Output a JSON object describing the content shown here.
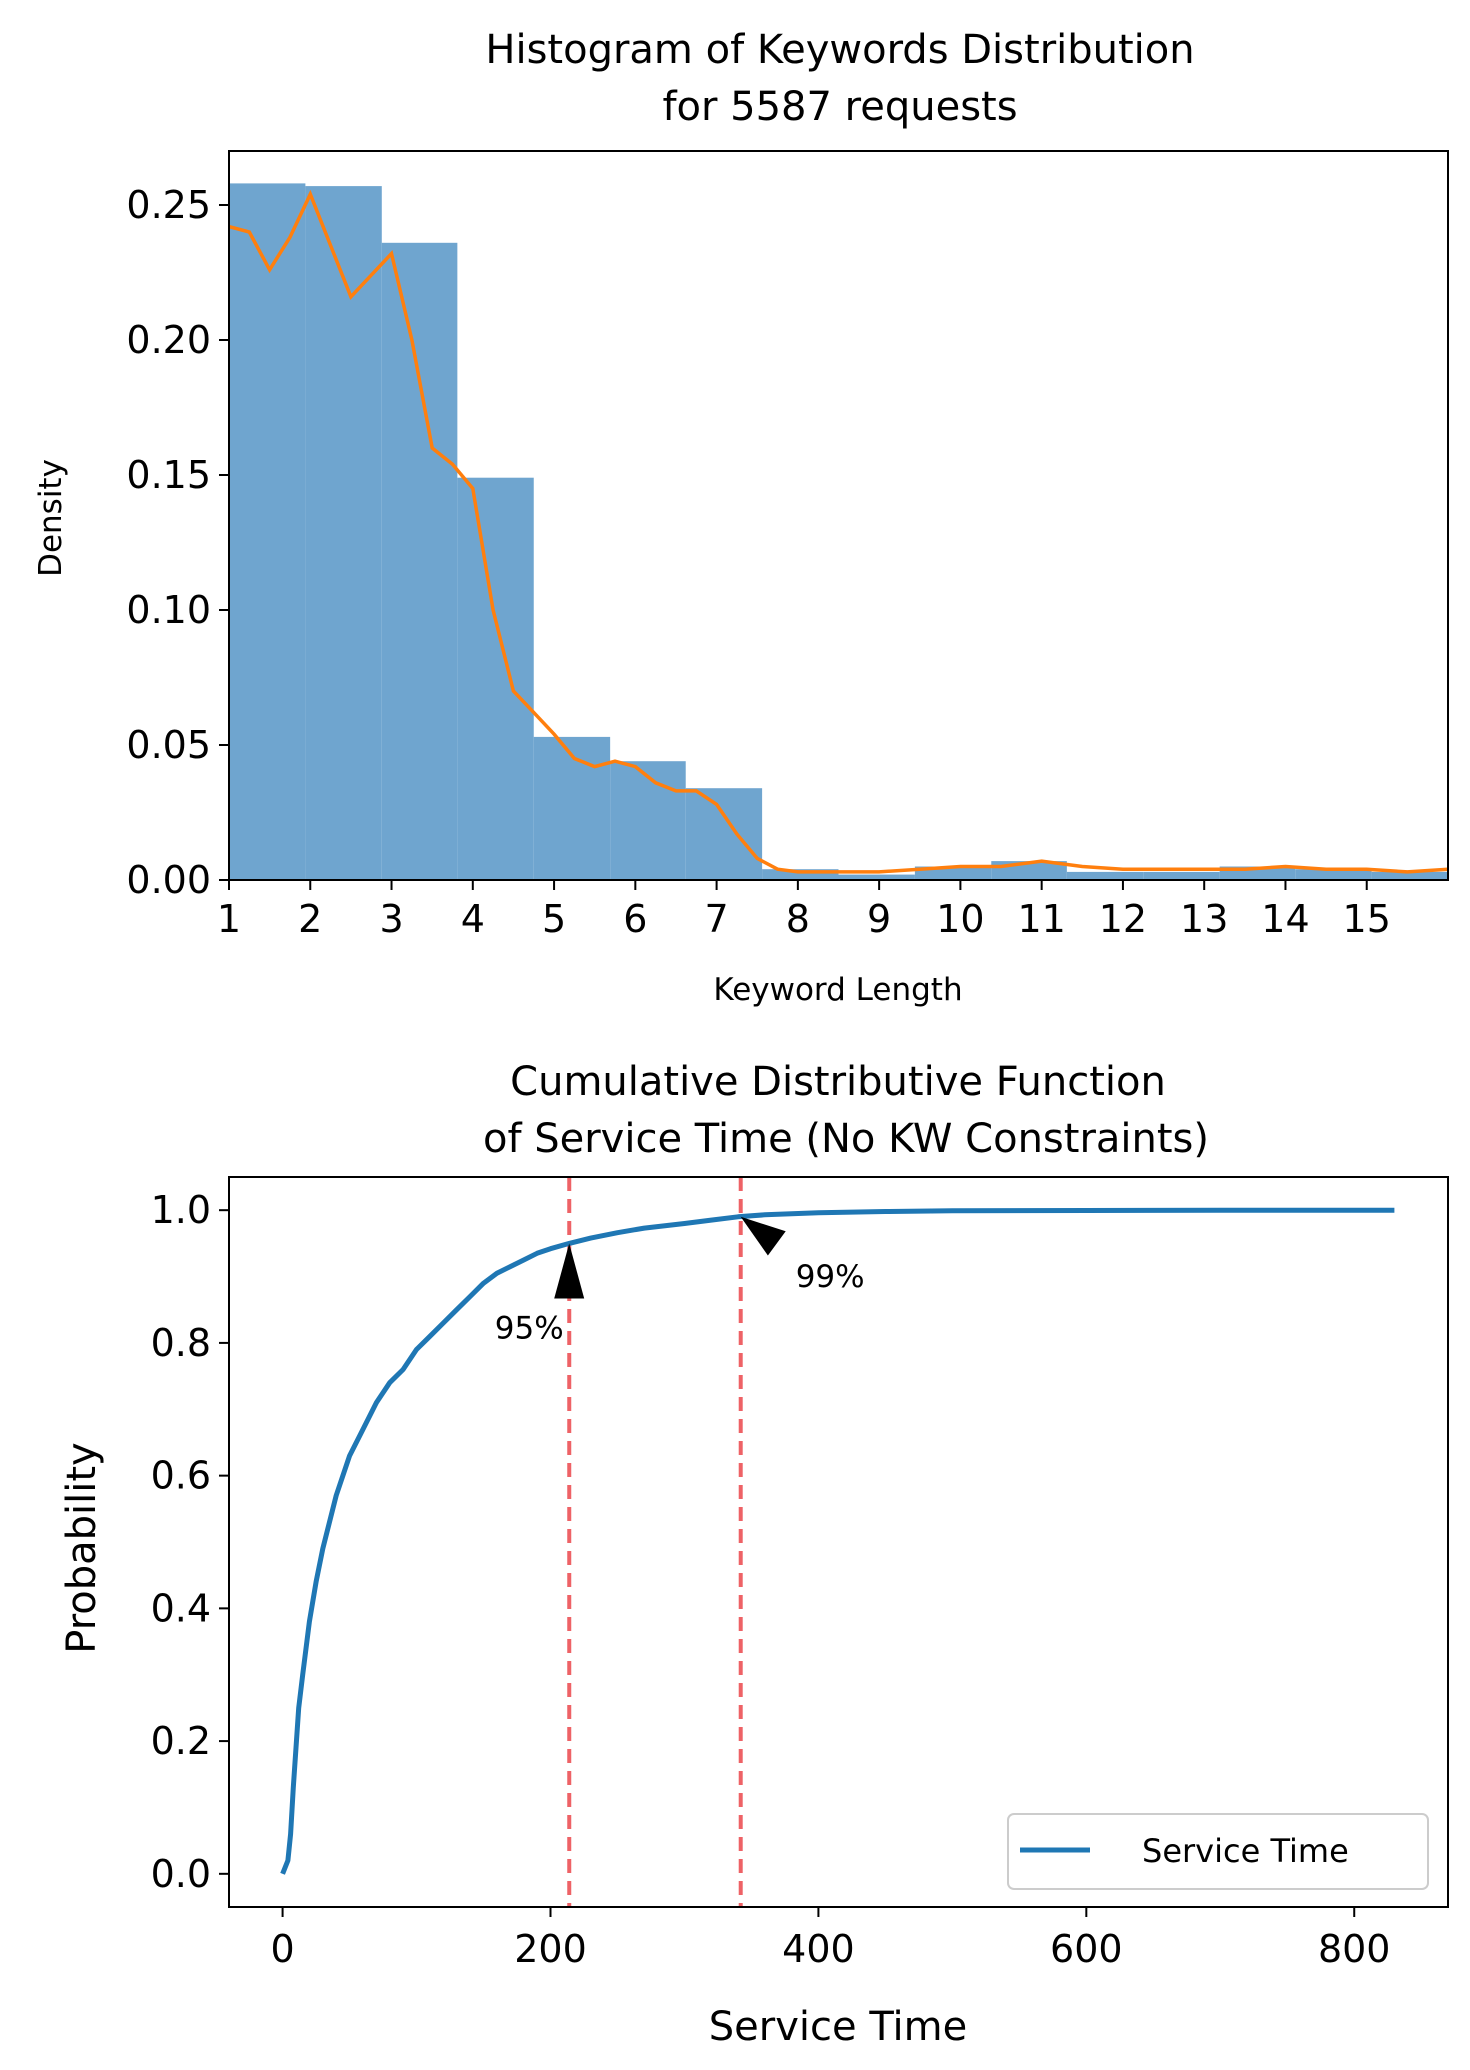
{
  "chart_data": [
    {
      "type": "bar",
      "title": [
        "Histogram of Keywords Distribution",
        "for 5587 requests"
      ],
      "xlabel": "Keyword Length",
      "ylabel": "Density",
      "xlim": [
        1,
        16
      ],
      "ylim": [
        0,
        0.27
      ],
      "xticks": [
        1,
        2,
        3,
        4,
        5,
        6,
        7,
        8,
        9,
        10,
        11,
        12,
        13,
        14,
        15
      ],
      "yticks": [
        0.0,
        0.05,
        0.1,
        0.15,
        0.2,
        0.25
      ],
      "ytick_labels": [
        "0.00",
        "0.05",
        "0.10",
        "0.15",
        "0.20",
        "0.25"
      ],
      "bar_color": "#6fa5cf",
      "kde_color": "#ff7f0e",
      "bins": [
        {
          "x0": 1.0,
          "x1": 1.94,
          "value": 0.258
        },
        {
          "x0": 1.94,
          "x1": 2.88,
          "value": 0.257
        },
        {
          "x0": 2.88,
          "x1": 3.81,
          "value": 0.236
        },
        {
          "x0": 3.81,
          "x1": 4.75,
          "value": 0.149
        },
        {
          "x0": 4.75,
          "x1": 5.69,
          "value": 0.053
        },
        {
          "x0": 5.69,
          "x1": 6.62,
          "value": 0.044
        },
        {
          "x0": 6.62,
          "x1": 7.56,
          "value": 0.034
        },
        {
          "x0": 7.56,
          "x1": 8.5,
          "value": 0.004
        },
        {
          "x0": 8.5,
          "x1": 9.44,
          "value": 0.002
        },
        {
          "x0": 9.44,
          "x1": 10.38,
          "value": 0.005
        },
        {
          "x0": 10.38,
          "x1": 11.31,
          "value": 0.007
        },
        {
          "x0": 11.31,
          "x1": 12.25,
          "value": 0.003
        },
        {
          "x0": 12.25,
          "x1": 13.19,
          "value": 0.003
        },
        {
          "x0": 13.19,
          "x1": 14.12,
          "value": 0.005
        },
        {
          "x0": 14.12,
          "x1": 15.06,
          "value": 0.004
        },
        {
          "x0": 15.06,
          "x1": 16.0,
          "value": 0.003
        }
      ],
      "kde": {
        "x": [
          1.0,
          1.25,
          1.5,
          1.75,
          2.0,
          2.25,
          2.5,
          2.75,
          3.0,
          3.25,
          3.5,
          3.75,
          4.0,
          4.25,
          4.5,
          4.75,
          5.0,
          5.25,
          5.5,
          5.75,
          6.0,
          6.25,
          6.5,
          6.75,
          7.0,
          7.25,
          7.5,
          7.75,
          8.0,
          8.5,
          9.0,
          9.5,
          10.0,
          10.5,
          11.0,
          11.5,
          12.0,
          12.5,
          13.0,
          13.5,
          14.0,
          14.5,
          15.0,
          15.5,
          16.0
        ],
        "y": [
          0.242,
          0.24,
          0.226,
          0.238,
          0.254,
          0.235,
          0.216,
          0.224,
          0.232,
          0.2,
          0.16,
          0.154,
          0.145,
          0.1,
          0.07,
          0.062,
          0.054,
          0.045,
          0.042,
          0.044,
          0.042,
          0.036,
          0.033,
          0.033,
          0.028,
          0.017,
          0.008,
          0.004,
          0.003,
          0.003,
          0.003,
          0.004,
          0.005,
          0.005,
          0.007,
          0.005,
          0.004,
          0.004,
          0.004,
          0.004,
          0.005,
          0.004,
          0.004,
          0.003,
          0.004
        ]
      }
    },
    {
      "type": "line",
      "title": [
        "Cumulative Distributive Function",
        "of Service Time (No KW Constraints)"
      ],
      "xlabel": "Service Time",
      "ylabel": "Probability",
      "xlim": [
        -40,
        870
      ],
      "ylim": [
        -0.05,
        1.05
      ],
      "xticks": [
        0,
        200,
        400,
        600,
        800
      ],
      "xtick_labels": [
        "0",
        "200",
        "400",
        "600",
        "800"
      ],
      "yticks": [
        0.0,
        0.2,
        0.4,
        0.6,
        0.8,
        1.0
      ],
      "ytick_labels": [
        "0.0",
        "0.2",
        "0.4",
        "0.6",
        "0.8",
        "1.0"
      ],
      "line_color": "#1f77b4",
      "vline_color": "#ee6266",
      "legend": {
        "label": "Service Time",
        "position": "lower-right"
      },
      "series": [
        {
          "name": "Service Time",
          "x": [
            0,
            4,
            6,
            8,
            10,
            12,
            15,
            20,
            25,
            30,
            40,
            50,
            60,
            70,
            80,
            90,
            100,
            110,
            120,
            130,
            140,
            150,
            160,
            170,
            180,
            190,
            200,
            214,
            230,
            250,
            270,
            300,
            320,
            340,
            360,
            400,
            450,
            500,
            600,
            700,
            830
          ],
          "y": [
            0.0,
            0.02,
            0.06,
            0.13,
            0.19,
            0.25,
            0.3,
            0.38,
            0.44,
            0.49,
            0.57,
            0.63,
            0.67,
            0.71,
            0.74,
            0.76,
            0.79,
            0.81,
            0.83,
            0.85,
            0.87,
            0.89,
            0.905,
            0.915,
            0.925,
            0.935,
            0.942,
            0.95,
            0.958,
            0.966,
            0.973,
            0.98,
            0.985,
            0.99,
            0.993,
            0.996,
            0.998,
            0.999,
            0.9995,
            0.9998,
            1.0
          ]
        }
      ],
      "vlines": [
        214,
        342
      ],
      "annotations": [
        {
          "text": "95%",
          "x": 214,
          "y": 0.95
        },
        {
          "text": "99%",
          "x": 342,
          "y": 0.99
        }
      ]
    }
  ]
}
